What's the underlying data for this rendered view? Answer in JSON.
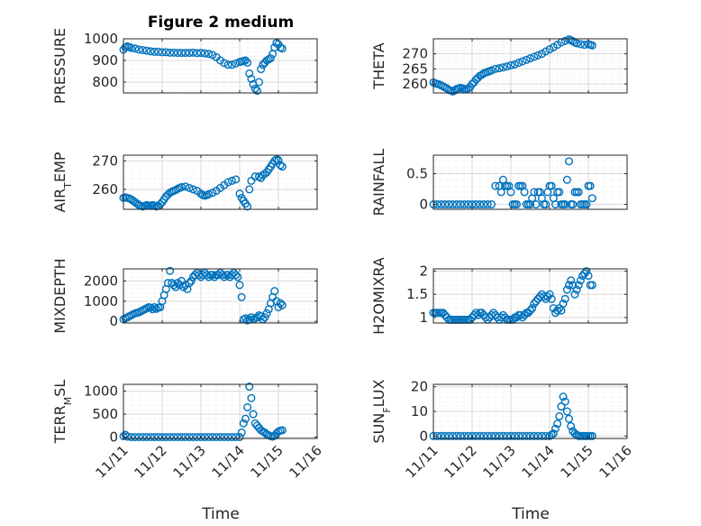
{
  "figure": {
    "title": "Figure 2 medium",
    "xlabel": "Time"
  },
  "colors": {
    "marker": "#0072BD",
    "axis": "#262626",
    "grid": "#d9d9d9",
    "minorgrid": "#ececec"
  },
  "chart_data": [
    {
      "id": "pressure",
      "type": "scatter",
      "ylabel": "PRESSURE",
      "title": "Figure 2 medium",
      "ylim": [
        750,
        1000
      ],
      "yticks": [
        800,
        900,
        1000
      ],
      "ytick_labels": [
        "800",
        "900",
        "1000"
      ],
      "xlim": [
        0,
        5
      ],
      "xticks": [
        0,
        1,
        2,
        3,
        4,
        5
      ],
      "xtick_labels": [
        "11/11",
        "11/12",
        "11/13",
        "11/14",
        "11/15",
        "11/16"
      ],
      "show_xtick_labels": false,
      "x": [
        0.0,
        0.05,
        0.1,
        0.15,
        0.2,
        0.3,
        0.4,
        0.5,
        0.6,
        0.7,
        0.8,
        0.9,
        1.0,
        1.1,
        1.2,
        1.3,
        1.4,
        1.5,
        1.6,
        1.7,
        1.8,
        1.9,
        2.0,
        2.1,
        2.2,
        2.3,
        2.4,
        2.5,
        2.6,
        2.7,
        2.8,
        2.9,
        3.0,
        3.05,
        3.1,
        3.15,
        3.2,
        3.25,
        3.3,
        3.35,
        3.4,
        3.45,
        3.5,
        3.55,
        3.6,
        3.65,
        3.7,
        3.75,
        3.8,
        3.85,
        3.9,
        3.95,
        4.0,
        4.05,
        4.1
      ],
      "values": [
        950,
        960,
        965,
        962,
        958,
        955,
        950,
        948,
        945,
        942,
        940,
        940,
        938,
        938,
        936,
        936,
        935,
        935,
        935,
        935,
        936,
        934,
        935,
        933,
        930,
        925,
        915,
        900,
        888,
        880,
        880,
        886,
        893,
        895,
        898,
        900,
        890,
        840,
        815,
        790,
        770,
        760,
        800,
        860,
        880,
        890,
        900,
        905,
        910,
        930,
        960,
        980,
        975,
        960,
        955
      ]
    },
    {
      "id": "theta",
      "type": "scatter",
      "ylabel": "THETA",
      "ylim": [
        257,
        275
      ],
      "yticks": [
        260,
        265,
        270
      ],
      "ytick_labels": [
        "260",
        "265",
        "270"
      ],
      "xlim": [
        0,
        5
      ],
      "xticks": [
        0,
        1,
        2,
        3,
        4,
        5
      ],
      "xtick_labels": [
        "11/11",
        "11/12",
        "11/13",
        "11/14",
        "11/15",
        "11/16"
      ],
      "show_xtick_labels": false,
      "x": [
        0.0,
        0.05,
        0.1,
        0.15,
        0.2,
        0.25,
        0.3,
        0.35,
        0.4,
        0.45,
        0.5,
        0.55,
        0.6,
        0.65,
        0.7,
        0.75,
        0.8,
        0.85,
        0.9,
        0.95,
        1.0,
        1.05,
        1.1,
        1.15,
        1.2,
        1.25,
        1.3,
        1.35,
        1.4,
        1.45,
        1.5,
        1.6,
        1.7,
        1.8,
        1.9,
        2.0,
        2.1,
        2.2,
        2.3,
        2.4,
        2.5,
        2.6,
        2.7,
        2.8,
        2.9,
        3.0,
        3.1,
        3.2,
        3.3,
        3.4,
        3.5,
        3.55,
        3.6,
        3.65,
        3.7,
        3.8,
        3.9,
        4.0,
        4.05,
        4.1
      ],
      "values": [
        260.5,
        260.2,
        260,
        259.8,
        259.5,
        259.2,
        258.8,
        258.5,
        258,
        257.8,
        257.5,
        257.8,
        258.3,
        258.5,
        258.7,
        258.5,
        258.3,
        258.2,
        258.5,
        259,
        260,
        260.5,
        261.5,
        262,
        262.7,
        263,
        263.5,
        263.8,
        264,
        264.2,
        264.5,
        265,
        265.2,
        265.5,
        265.8,
        266.2,
        266.5,
        267,
        267.5,
        268,
        268.5,
        269,
        269.5,
        270,
        270.8,
        271.5,
        272.2,
        273,
        273.8,
        274.3,
        274.8,
        274.5,
        274.2,
        273.8,
        273.5,
        273.2,
        273,
        273.2,
        273,
        272.8
      ]
    },
    {
      "id": "air_temp",
      "type": "scatter",
      "ylabel": "AIR_TEMP",
      "ylim": [
        253,
        272
      ],
      "yticks": [
        260,
        270
      ],
      "ytick_labels": [
        "260",
        "270"
      ],
      "xlim": [
        0,
        5
      ],
      "xticks": [
        0,
        1,
        2,
        3,
        4,
        5
      ],
      "xtick_labels": [
        "11/11",
        "11/12",
        "11/13",
        "11/14",
        "11/15",
        "11/16"
      ],
      "show_xtick_labels": false,
      "x": [
        0.0,
        0.05,
        0.1,
        0.15,
        0.2,
        0.25,
        0.3,
        0.35,
        0.4,
        0.45,
        0.5,
        0.55,
        0.6,
        0.65,
        0.7,
        0.75,
        0.8,
        0.85,
        0.9,
        0.95,
        1.0,
        1.05,
        1.1,
        1.15,
        1.2,
        1.25,
        1.3,
        1.35,
        1.4,
        1.45,
        1.5,
        1.6,
        1.7,
        1.8,
        1.9,
        2.0,
        2.05,
        2.1,
        2.15,
        2.2,
        2.3,
        2.4,
        2.5,
        2.6,
        2.7,
        2.8,
        2.9,
        3.0,
        3.05,
        3.1,
        3.15,
        3.2,
        3.25,
        3.3,
        3.4,
        3.5,
        3.55,
        3.6,
        3.65,
        3.7,
        3.75,
        3.8,
        3.85,
        3.9,
        3.95,
        4.0,
        4.05,
        4.1
      ],
      "values": [
        257,
        257.2,
        257,
        256.8,
        256.5,
        256,
        255.5,
        255,
        254.5,
        254.2,
        254,
        254.2,
        254.5,
        254.3,
        254.2,
        254.5,
        254.3,
        254,
        254.2,
        254.8,
        255.5,
        256.5,
        257.5,
        258.2,
        258.8,
        259.2,
        259.5,
        259.8,
        260.2,
        260.5,
        260.8,
        261,
        260.5,
        260,
        259.5,
        258.5,
        258,
        257.8,
        258,
        258.3,
        258.8,
        259.5,
        260.5,
        261.5,
        262.5,
        263,
        263.5,
        258.5,
        257,
        256,
        255,
        254,
        260,
        263,
        264.5,
        264.5,
        264,
        265,
        265.5,
        266,
        267,
        268,
        269,
        270,
        270.5,
        270.2,
        268.5,
        268
      ]
    },
    {
      "id": "rainfall",
      "type": "scatter",
      "ylabel": "RAINFALL",
      "ylim": [
        -0.08,
        0.8
      ],
      "yticks": [
        0,
        0.5
      ],
      "ytick_labels": [
        "0",
        "0.5"
      ],
      "xlim": [
        0,
        5
      ],
      "xticks": [
        0,
        1,
        2,
        3,
        4,
        5
      ],
      "xtick_labels": [
        "11/11",
        "11/12",
        "11/13",
        "11/14",
        "11/15",
        "11/16"
      ],
      "show_xtick_labels": false,
      "x": [
        0.0,
        0.1,
        0.2,
        0.3,
        0.4,
        0.5,
        0.6,
        0.7,
        0.8,
        0.9,
        1.0,
        1.1,
        1.2,
        1.3,
        1.4,
        1.5,
        1.6,
        1.7,
        1.75,
        1.8,
        1.85,
        1.9,
        1.95,
        2.0,
        2.05,
        2.1,
        2.15,
        2.2,
        2.25,
        2.3,
        2.35,
        2.4,
        2.45,
        2.5,
        2.55,
        2.6,
        2.65,
        2.7,
        2.75,
        2.8,
        2.85,
        2.9,
        2.95,
        3.0,
        3.05,
        3.1,
        3.15,
        3.2,
        3.25,
        3.3,
        3.35,
        3.4,
        3.45,
        3.5,
        3.55,
        3.6,
        3.65,
        3.7,
        3.75,
        3.8,
        3.85,
        3.9,
        3.95,
        4.0,
        4.05,
        4.1
      ],
      "values": [
        0,
        0,
        0,
        0,
        0,
        0,
        0,
        0,
        0,
        0,
        0,
        0,
        0,
        0,
        0,
        0,
        0.3,
        0.3,
        0.2,
        0.4,
        0.3,
        0.3,
        0.3,
        0.2,
        0,
        0,
        0,
        0.3,
        0.3,
        0.3,
        0.2,
        0,
        0,
        0,
        0.1,
        0.2,
        0,
        0.2,
        0.2,
        0.1,
        0,
        0,
        0.2,
        0.3,
        0.3,
        0.1,
        0,
        0.2,
        0.2,
        0,
        0,
        0,
        0.4,
        0.7,
        0,
        0,
        0.2,
        0.2,
        0.2,
        0,
        0,
        0,
        0,
        0.3,
        0.3,
        0.1
      ]
    },
    {
      "id": "mixdepth",
      "type": "scatter",
      "ylabel": "MIXDEPTH",
      "ylim": [
        -80,
        2600
      ],
      "yticks": [
        0,
        1000,
        2000
      ],
      "ytick_labels": [
        "0",
        "1000",
        "2000"
      ],
      "xlim": [
        0,
        5
      ],
      "xticks": [
        0,
        1,
        2,
        3,
        4,
        5
      ],
      "xtick_labels": [
        "11/11",
        "11/12",
        "11/13",
        "11/14",
        "11/15",
        "11/16"
      ],
      "show_xtick_labels": false,
      "x": [
        0.0,
        0.05,
        0.1,
        0.15,
        0.2,
        0.25,
        0.3,
        0.35,
        0.4,
        0.45,
        0.5,
        0.55,
        0.6,
        0.65,
        0.7,
        0.75,
        0.8,
        0.85,
        0.9,
        0.95,
        1.0,
        1.05,
        1.1,
        1.15,
        1.2,
        1.25,
        1.3,
        1.35,
        1.4,
        1.45,
        1.5,
        1.55,
        1.6,
        1.65,
        1.7,
        1.75,
        1.8,
        1.85,
        1.9,
        1.95,
        2.0,
        2.05,
        2.1,
        2.15,
        2.2,
        2.25,
        2.3,
        2.35,
        2.4,
        2.45,
        2.5,
        2.55,
        2.6,
        2.65,
        2.7,
        2.75,
        2.8,
        2.85,
        2.9,
        2.95,
        3.0,
        3.05,
        3.1,
        3.15,
        3.2,
        3.25,
        3.3,
        3.35,
        3.4,
        3.45,
        3.5,
        3.55,
        3.6,
        3.65,
        3.7,
        3.75,
        3.8,
        3.85,
        3.9,
        3.95,
        4.0,
        4.05,
        4.1
      ],
      "values": [
        100,
        150,
        200,
        250,
        300,
        350,
        400,
        420,
        450,
        500,
        550,
        600,
        650,
        700,
        680,
        600,
        700,
        620,
        680,
        700,
        1000,
        1300,
        1600,
        1900,
        2500,
        1900,
        1800,
        1700,
        1900,
        1800,
        2000,
        1700,
        1800,
        1600,
        1900,
        2000,
        2200,
        2300,
        2400,
        2300,
        2200,
        2300,
        2400,
        2300,
        2200,
        2300,
        2300,
        2200,
        2300,
        2300,
        2400,
        2300,
        2200,
        2300,
        2300,
        2200,
        2300,
        2400,
        2300,
        2200,
        1800,
        1200,
        100,
        150,
        50,
        100,
        200,
        100,
        150,
        200,
        300,
        250,
        100,
        200,
        400,
        600,
        900,
        1200,
        1500,
        1000,
        700,
        900,
        800
      ]
    },
    {
      "id": "h2omixra",
      "type": "scatter",
      "ylabel": "H2OMIXRA",
      "ylim": [
        0.88,
        2.05
      ],
      "yticks": [
        1,
        1.5,
        2
      ],
      "ytick_labels": [
        "1",
        "1.5",
        "2"
      ],
      "xlim": [
        0,
        5
      ],
      "xticks": [
        0,
        1,
        2,
        3,
        4,
        5
      ],
      "xtick_labels": [
        "11/11",
        "11/12",
        "11/13",
        "11/14",
        "11/15",
        "11/16"
      ],
      "show_xtick_labels": false,
      "x": [
        0.0,
        0.05,
        0.1,
        0.15,
        0.2,
        0.25,
        0.3,
        0.35,
        0.4,
        0.45,
        0.5,
        0.55,
        0.6,
        0.65,
        0.7,
        0.75,
        0.8,
        0.85,
        0.9,
        0.95,
        1.0,
        1.05,
        1.1,
        1.15,
        1.2,
        1.25,
        1.3,
        1.35,
        1.4,
        1.45,
        1.5,
        1.55,
        1.6,
        1.65,
        1.7,
        1.75,
        1.8,
        1.85,
        1.9,
        1.95,
        2.0,
        2.05,
        2.1,
        2.15,
        2.2,
        2.25,
        2.3,
        2.35,
        2.4,
        2.45,
        2.5,
        2.55,
        2.6,
        2.65,
        2.7,
        2.75,
        2.8,
        2.85,
        2.9,
        2.95,
        3.0,
        3.05,
        3.1,
        3.15,
        3.2,
        3.25,
        3.3,
        3.35,
        3.4,
        3.45,
        3.5,
        3.55,
        3.6,
        3.65,
        3.7,
        3.75,
        3.8,
        3.85,
        3.9,
        3.95,
        4.0,
        4.05,
        4.1
      ],
      "values": [
        1.1,
        1.1,
        1.1,
        1.1,
        1.1,
        1.1,
        1.05,
        1.0,
        0.95,
        0.95,
        0.95,
        0.95,
        0.95,
        0.95,
        0.95,
        0.95,
        0.95,
        0.95,
        0.95,
        0.95,
        1.0,
        1.05,
        1.1,
        1.05,
        1.1,
        1.1,
        1.05,
        1.0,
        0.95,
        1.0,
        1.05,
        1.1,
        1.05,
        1.0,
        0.95,
        1.0,
        1.05,
        1.0,
        0.95,
        0.95,
        0.95,
        0.95,
        1.0,
        1.0,
        1.05,
        1.05,
        1.0,
        1.05,
        1.1,
        1.1,
        1.15,
        1.2,
        1.3,
        1.35,
        1.4,
        1.45,
        1.5,
        1.45,
        1.4,
        1.45,
        1.5,
        1.4,
        1.2,
        1.1,
        1.15,
        1.2,
        1.15,
        1.3,
        1.4,
        1.6,
        1.7,
        1.8,
        1.7,
        1.5,
        1.6,
        1.7,
        1.8,
        1.9,
        1.95,
        2.0,
        1.9,
        1.7,
        1.7
      ]
    },
    {
      "id": "terr_msl",
      "type": "scatter",
      "ylabel": "TERR_MSL",
      "ylim": [
        -30,
        1150
      ],
      "yticks": [
        0,
        500,
        1000
      ],
      "ytick_labels": [
        "0",
        "500",
        "1000"
      ],
      "xlim": [
        0,
        5
      ],
      "xticks": [
        0,
        1,
        2,
        3,
        4,
        5
      ],
      "xtick_labels": [
        "11/11",
        "11/12",
        "11/13",
        "11/14",
        "11/15",
        "11/16"
      ],
      "show_xtick_labels": true,
      "x": [
        0.0,
        0.05,
        0.1,
        0.2,
        0.3,
        0.4,
        0.5,
        0.6,
        0.7,
        0.8,
        0.9,
        1.0,
        1.1,
        1.2,
        1.3,
        1.4,
        1.5,
        1.6,
        1.7,
        1.8,
        1.9,
        2.0,
        2.1,
        2.2,
        2.3,
        2.4,
        2.5,
        2.6,
        2.7,
        2.8,
        2.9,
        3.0,
        3.05,
        3.1,
        3.15,
        3.2,
        3.25,
        3.3,
        3.35,
        3.4,
        3.45,
        3.5,
        3.55,
        3.6,
        3.65,
        3.7,
        3.75,
        3.8,
        3.85,
        3.9,
        3.95,
        4.0,
        4.05,
        4.1
      ],
      "values": [
        20,
        50,
        10,
        0,
        0,
        0,
        0,
        0,
        0,
        0,
        0,
        0,
        0,
        0,
        0,
        0,
        0,
        0,
        0,
        0,
        0,
        0,
        0,
        0,
        0,
        0,
        0,
        0,
        0,
        0,
        0,
        0,
        100,
        300,
        400,
        650,
        1100,
        850,
        500,
        300,
        250,
        200,
        150,
        120,
        100,
        60,
        40,
        20,
        10,
        30,
        80,
        120,
        140,
        150
      ]
    },
    {
      "id": "sun_flux",
      "type": "scatter",
      "ylabel": "SUN_FLUX",
      "ylim": [
        -1,
        21
      ],
      "yticks": [
        0,
        10,
        20
      ],
      "ytick_labels": [
        "0",
        "10",
        "20"
      ],
      "xlim": [
        0,
        5
      ],
      "xticks": [
        0,
        1,
        2,
        3,
        4,
        5
      ],
      "xtick_labels": [
        "11/11",
        "11/12",
        "11/13",
        "11/14",
        "11/15",
        "11/16"
      ],
      "show_xtick_labels": true,
      "x": [
        0.0,
        0.1,
        0.2,
        0.3,
        0.4,
        0.5,
        0.6,
        0.7,
        0.8,
        0.9,
        1.0,
        1.1,
        1.2,
        1.3,
        1.4,
        1.5,
        1.6,
        1.7,
        1.8,
        1.9,
        2.0,
        2.1,
        2.2,
        2.3,
        2.4,
        2.5,
        2.6,
        2.7,
        2.8,
        2.9,
        3.0,
        3.05,
        3.1,
        3.15,
        3.2,
        3.25,
        3.3,
        3.35,
        3.4,
        3.45,
        3.5,
        3.55,
        3.6,
        3.65,
        3.7,
        3.75,
        3.8,
        3.85,
        3.9,
        3.95,
        4.0,
        4.05,
        4.1
      ],
      "values": [
        0,
        0,
        0,
        0,
        0,
        0,
        0,
        0,
        0,
        0,
        0,
        0,
        0,
        0,
        0,
        0,
        0,
        0,
        0,
        0,
        0,
        0,
        0,
        0,
        0,
        0,
        0,
        0,
        0,
        0,
        0,
        0.5,
        1,
        3,
        5,
        8,
        12,
        16,
        14,
        10,
        7,
        4,
        2,
        1,
        0.5,
        0,
        0,
        0,
        0,
        0,
        0,
        0,
        0
      ]
    }
  ]
}
